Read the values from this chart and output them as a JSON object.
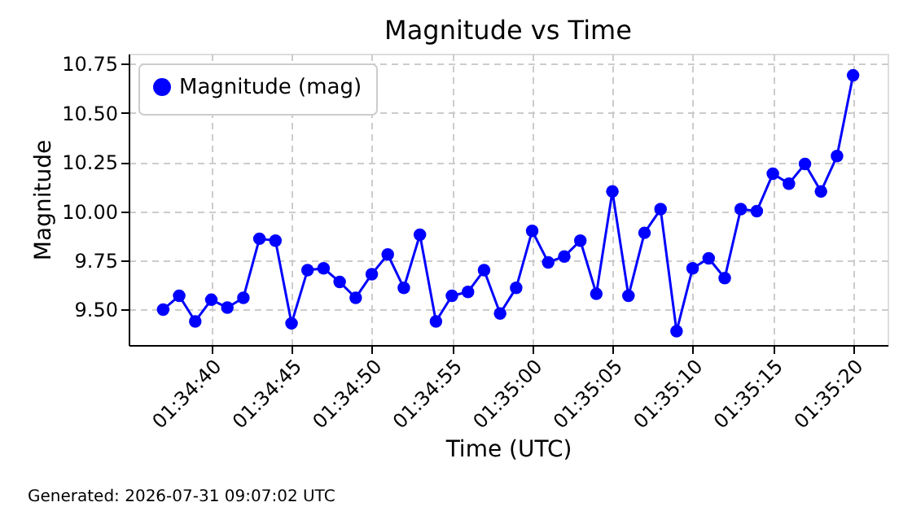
{
  "chart_data": {
    "type": "line",
    "title": "Magnitude vs Time",
    "xlabel": "Time (UTC)",
    "ylabel": "Magnitude",
    "x": [
      1.576944,
      1.577222,
      1.5775,
      1.577778,
      1.578056,
      1.578333,
      1.578611,
      1.578889,
      1.579167,
      1.579444,
      1.579722,
      1.58,
      1.580278,
      1.580556,
      1.580833,
      1.581111,
      1.581389,
      1.581667,
      1.581944,
      1.582222,
      1.5825,
      1.582778,
      1.583056,
      1.583333,
      1.583611,
      1.583889,
      1.584167,
      1.584444,
      1.584722,
      1.585,
      1.585278,
      1.585556,
      1.585833,
      1.586111,
      1.586389,
      1.586667,
      1.586944,
      1.587222,
      1.5875,
      1.587778,
      1.588056,
      1.588333,
      1.588611,
      1.588889
    ],
    "series": [
      {
        "name": "Magnitude (mag)",
        "color": "#0000ff",
        "values": [
          9.5,
          9.57,
          9.44,
          9.55,
          9.51,
          9.56,
          9.86,
          9.85,
          9.43,
          9.7,
          9.71,
          9.64,
          9.56,
          9.68,
          9.78,
          9.61,
          9.88,
          9.44,
          9.57,
          9.59,
          9.7,
          9.48,
          9.61,
          9.9,
          9.74,
          9.77,
          9.85,
          9.58,
          10.1,
          9.57,
          9.89,
          10.01,
          9.39,
          9.71,
          9.76,
          9.66,
          10.01,
          10.0,
          10.19,
          10.14,
          10.24,
          10.1,
          10.28,
          10.69
        ]
      }
    ],
    "xlim": [
      1.576347,
      1.589486
    ],
    "xticks": [
      {
        "value": 1.577778,
        "label": "01:34:40"
      },
      {
        "value": 1.579167,
        "label": "01:34:45"
      },
      {
        "value": 1.580556,
        "label": "01:34:50"
      },
      {
        "value": 1.581944,
        "label": "01:34:55"
      },
      {
        "value": 1.583333,
        "label": "01:35:00"
      },
      {
        "value": 1.584722,
        "label": "01:35:05"
      },
      {
        "value": 1.586111,
        "label": "01:35:10"
      },
      {
        "value": 1.5875,
        "label": "01:35:15"
      },
      {
        "value": 1.588889,
        "label": "01:35:20"
      }
    ],
    "ylim": [
      9.32,
      10.8
    ],
    "yticks": [
      {
        "value": 9.5,
        "label": "9.50"
      },
      9.75,
      {
        "value": 10.0,
        "label": "10.00"
      },
      10.25,
      {
        "value": 10.5,
        "label": "10.50"
      },
      10.75
    ],
    "grid": true,
    "legend": "top left",
    "marker": "circle",
    "line_style": "solid",
    "annotations": [
      "Generated: 2026-07-31 09:07:02 UTC"
    ]
  }
}
